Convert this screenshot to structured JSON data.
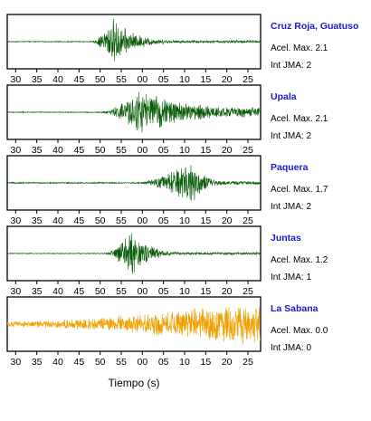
{
  "chart_data": {
    "type": "line",
    "description_units": "seconds",
    "x_ticks": [
      "30",
      "35",
      "40",
      "45",
      "50",
      "55",
      "00",
      "05",
      "10",
      "15",
      "20",
      "25"
    ],
    "xlabel": "Tiempo (s)",
    "panels": [
      {
        "station": "Cruz Roja, Guatuso",
        "accel_text": "Acel. Max. 2.1",
        "jma_text": "Int JMA: 2",
        "accel_max": 2.1,
        "jma": 2,
        "color": "#0a5c0a",
        "onset_s": 48.0,
        "peak_s": 53.0,
        "noise": 0.02,
        "peak_amp": 1.0,
        "decay": 5.0,
        "tail": 0.06
      },
      {
        "station": "Upala",
        "accel_text": "Acel. Max. 2.1",
        "jma_text": "Int JMA: 2",
        "accel_max": 2.1,
        "jma": 2,
        "color": "#0a5c0a",
        "onset_s": 50.0,
        "peak_s": 59.0,
        "noise": 0.02,
        "peak_amp": 0.95,
        "decay": 14.0,
        "tail": 0.22
      },
      {
        "station": "Paquera",
        "accel_text": "Acel. Max. 1.7",
        "jma_text": "Int JMA: 2",
        "accel_max": 1.7,
        "jma": 2,
        "color": "#0a5c0a",
        "onset_s": 59.0,
        "peak_s": 71.5,
        "noise": 0.03,
        "peak_amp": 1.0,
        "decay": 3.0,
        "tail": 0.08
      },
      {
        "station": "Juntas",
        "accel_text": "Acel. Max. 1.2",
        "jma_text": "Int JMA: 1",
        "accel_max": 1.2,
        "jma": 1,
        "color": "#0a5c0a",
        "onset_s": 51.0,
        "peak_s": 57.5,
        "noise": 0.02,
        "peak_amp": 1.0,
        "decay": 4.0,
        "tail": 0.06
      },
      {
        "station": "La Sabana",
        "accel_text": "Acel. Max. 0.0",
        "jma_text": "Int JMA: 0",
        "accel_max": 0.0,
        "jma": 0,
        "color": "#f0a000",
        "onset_s": 28.0,
        "peak_s": 85.0,
        "noise": 0.12,
        "peak_amp": 0.9,
        "decay": 40.0,
        "tail": 0.25
      }
    ],
    "xlim_s": [
      28,
      88
    ],
    "grid": false,
    "legend": "none"
  }
}
